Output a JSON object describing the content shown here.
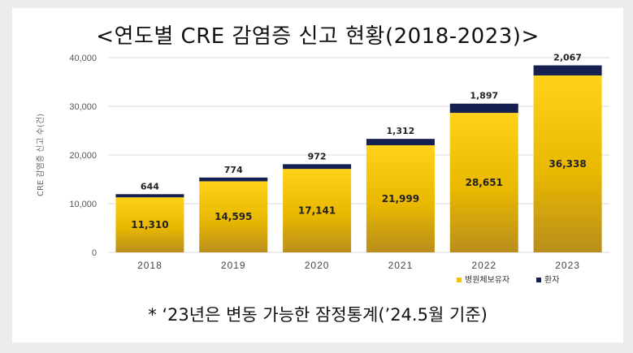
{
  "title": "<연도별 CRE 감염증 신고 현황(2018-2023)>",
  "footnote": "* ‘23년은 변동 가능한 잠정통계(’24.5월 기준)",
  "colors": {
    "hospital": "#f2c200",
    "hospital_dark": "#b8860b",
    "patient": "#162050",
    "grid": "#d9d9d9"
  },
  "chart_data": {
    "type": "bar",
    "stacked": true,
    "categories": [
      "2018",
      "2019",
      "2020",
      "2021",
      "2022",
      "2023"
    ],
    "series": [
      {
        "name": "병원체보유자",
        "values": [
          11310,
          14595,
          17141,
          21999,
          28651,
          36338
        ],
        "labels": [
          "11,310",
          "14,595",
          "17,141",
          "21,999",
          "28,651",
          "36,338"
        ]
      },
      {
        "name": "환자",
        "values": [
          644,
          774,
          972,
          1312,
          1897,
          2067
        ],
        "labels": [
          "644",
          "774",
          "972",
          "1,312",
          "1,897",
          "2,067"
        ]
      }
    ],
    "ylabel": "CRE 감염증 신고 수(건)",
    "ylim": [
      0,
      40000
    ],
    "yticks": [
      0,
      10000,
      20000,
      30000,
      40000
    ],
    "ytick_labels": [
      "0",
      "10,000",
      "20,000",
      "30,000",
      "40,000"
    ],
    "grid": true,
    "legend": "bottom-right"
  }
}
